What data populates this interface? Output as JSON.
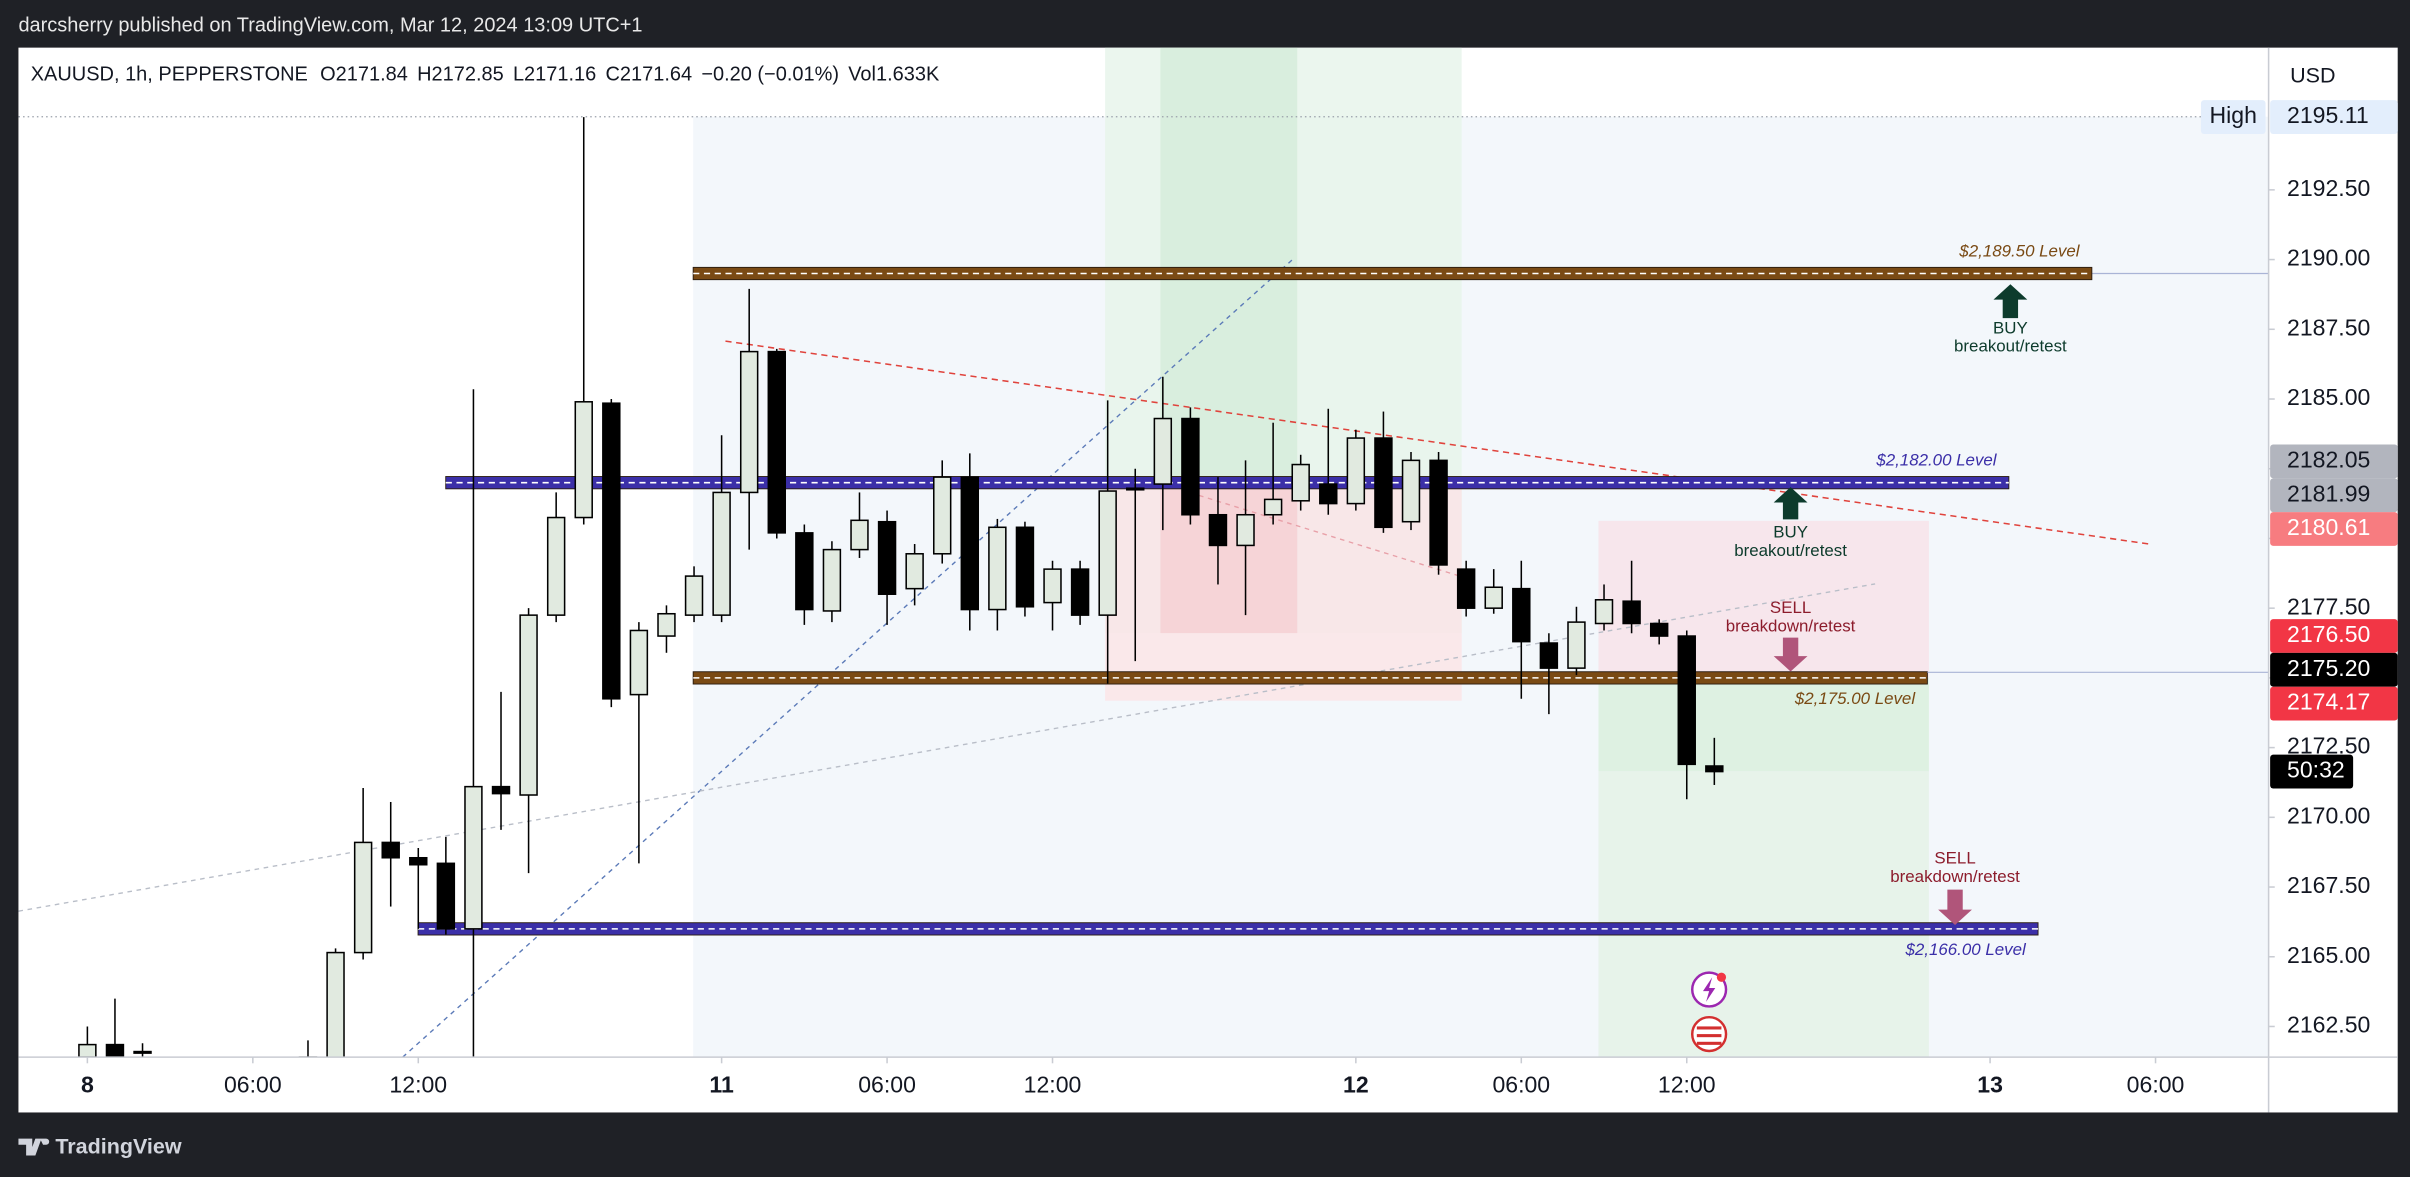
{
  "header": {
    "publisher": "darcsherry published on TradingView.com, Mar 12, 2024 13:09 UTC+1"
  },
  "footer": {
    "brand": "TradingView"
  },
  "chart_data": {
    "type": "candlestick",
    "symbol": "XAUUSD, 1h, PEPPERSTONE",
    "legend_items": [
      "O2171.84",
      "H2172.85",
      "L2171.16",
      "C2171.64",
      "−0.20 (−0.01%)",
      "Vol1.633K"
    ],
    "currency": "USD",
    "countdown": "50:32",
    "up_color": "#e1eae0",
    "down_color": "#000000",
    "x": [
      0,
      1,
      2,
      8,
      9,
      10,
      11,
      12,
      13,
      14,
      15,
      16,
      17,
      18,
      19,
      20,
      21,
      22,
      23,
      24,
      25,
      26,
      27,
      28,
      29,
      30,
      31,
      32,
      33,
      34,
      35,
      36,
      37,
      38,
      39,
      40,
      41,
      42,
      43,
      44,
      45,
      46,
      47,
      48,
      49,
      50,
      51,
      52,
      53,
      54,
      55,
      56,
      57,
      58,
      59
    ],
    "open": [
      2161.4,
      2161.85,
      2161.6,
      2161.3,
      2161.2,
      2165.15,
      2169.1,
      2168.55,
      2168.35,
      2166.0,
      2171.1,
      2170.8,
      2177.25,
      2180.75,
      2184.85,
      2174.4,
      2176.5,
      2177.25,
      2177.25,
      2181.65,
      2186.7,
      2180.2,
      2177.4,
      2179.6,
      2180.6,
      2178.2,
      2179.45,
      2182.2,
      2177.45,
      2180.4,
      2177.7,
      2178.9,
      2177.25,
      2181.75,
      2181.95,
      2184.3,
      2180.85,
      2179.75,
      2180.85,
      2181.35,
      2181.95,
      2181.25,
      2183.6,
      2180.6,
      2182.8,
      2178.9,
      2177.5,
      2178.2,
      2176.25,
      2175.35,
      2176.95,
      2177.75,
      2176.95,
      2176.5,
      2171.84
    ],
    "high": [
      2162.5,
      2163.5,
      2161.9,
      2162.0,
      2165.3,
      2171.05,
      2170.55,
      2168.9,
      2169.3,
      2185.35,
      2174.5,
      2177.5,
      2181.65,
      2195.11,
      2185.0,
      2177.0,
      2177.6,
      2179.0,
      2183.7,
      2188.95,
      2186.8,
      2180.5,
      2179.9,
      2181.65,
      2181.0,
      2179.8,
      2182.8,
      2183.05,
      2180.7,
      2180.6,
      2179.2,
      2179.2,
      2184.95,
      2182.5,
      2185.8,
      2184.7,
      2182.2,
      2182.8,
      2184.15,
      2183.0,
      2184.65,
      2183.9,
      2184.55,
      2183.1,
      2183.1,
      2179.2,
      2178.9,
      2179.2,
      2176.6,
      2177.55,
      2178.35,
      2179.2,
      2177.1,
      2176.7,
      2172.85
    ],
    "low": [
      2161.2,
      2161.1,
      2161.2,
      2161.0,
      2161.0,
      2164.9,
      2166.8,
      2166.0,
      2165.8,
      2161.1,
      2169.55,
      2168.0,
      2177.0,
      2180.5,
      2173.95,
      2168.35,
      2175.9,
      2177.0,
      2177.0,
      2179.6,
      2180.0,
      2176.9,
      2177.0,
      2179.3,
      2176.9,
      2177.6,
      2179.1,
      2176.7,
      2176.7,
      2177.2,
      2176.7,
      2176.9,
      2174.8,
      2175.6,
      2180.3,
      2180.5,
      2178.35,
      2177.25,
      2180.5,
      2181.0,
      2180.85,
      2181.0,
      2180.2,
      2180.3,
      2178.7,
      2177.2,
      2177.3,
      2174.25,
      2173.7,
      2175.1,
      2176.7,
      2176.6,
      2176.2,
      2170.65,
      2171.16
    ],
    "close": [
      2161.85,
      2161.3,
      2161.55,
      2161.4,
      2165.15,
      2169.1,
      2168.55,
      2168.3,
      2166.0,
      2171.1,
      2170.85,
      2177.25,
      2180.75,
      2184.9,
      2174.25,
      2176.7,
      2177.3,
      2178.65,
      2181.65,
      2186.7,
      2180.2,
      2177.45,
      2179.6,
      2180.65,
      2178.0,
      2179.45,
      2182.2,
      2177.45,
      2180.4,
      2177.55,
      2178.9,
      2177.25,
      2181.7,
      2181.8,
      2184.3,
      2180.85,
      2179.75,
      2180.85,
      2181.4,
      2182.65,
      2181.25,
      2183.6,
      2180.4,
      2182.8,
      2179.05,
      2177.5,
      2178.25,
      2176.3,
      2175.35,
      2177.0,
      2177.8,
      2176.95,
      2176.5,
      2171.9,
      2171.64
    ],
    "xlim": [
      -2.5,
      79.1
    ],
    "xticks": [
      {
        "value": 0,
        "label": "8"
      },
      {
        "value": 6,
        "label": "06:00"
      },
      {
        "value": 12,
        "label": "12:00"
      },
      {
        "value": 23,
        "label": "11"
      },
      {
        "value": 29,
        "label": "06:00"
      },
      {
        "value": 35,
        "label": "12:00"
      },
      {
        "value": 46,
        "label": "12"
      },
      {
        "value": 52,
        "label": "06:00"
      },
      {
        "value": 58,
        "label": "12:00"
      },
      {
        "value": 69,
        "label": "13"
      },
      {
        "value": 75,
        "label": "06:00"
      }
    ],
    "ylim": [
      2161.4,
      2197.6
    ],
    "yticks": [
      {
        "value": 2162.5,
        "label": "2162.50"
      },
      {
        "value": 2165,
        "label": "2165.00"
      },
      {
        "value": 2167.5,
        "label": "2167.50"
      },
      {
        "value": 2170,
        "label": "2170.00"
      },
      {
        "value": 2172.5,
        "label": "2172.50"
      },
      {
        "value": 2175,
        "label": "2175.00"
      },
      {
        "value": 2177.5,
        "label": "2177.50"
      },
      {
        "value": 2180,
        "label": "2180.00"
      },
      {
        "value": 2182.5,
        "label": "2182.50"
      },
      {
        "value": 2185,
        "label": "2185.00"
      },
      {
        "value": 2187.5,
        "label": "2187.50"
      },
      {
        "value": 2190,
        "label": "2190.00"
      },
      {
        "value": 2192.5,
        "label": "2192.50"
      }
    ],
    "levels": [
      {
        "value": 2189.5,
        "label": "$2,189.50 Level",
        "color": "#7a4a14"
      },
      {
        "value": 2182,
        "label": "$2,182.00 Level",
        "color": "#3b2fa8"
      },
      {
        "value": 2175,
        "label": "$2,175.00 Level",
        "color": "#7a4a14"
      },
      {
        "value": 2166,
        "label": "$2,166.00 Level",
        "color": "#3b2fa8"
      }
    ],
    "annotations": [
      {
        "lines": [
          "BUY",
          "breakout/retest"
        ],
        "color": "#0d3b2c"
      },
      {
        "lines": [
          "BUY",
          "breakout/retest"
        ],
        "color": "#0d3b2c"
      },
      {
        "lines": [
          "SELL",
          "breakdown/retest"
        ],
        "color": "#8c1c2c"
      },
      {
        "lines": [
          "SELL",
          "breakdown/retest"
        ],
        "color": "#8c1c2c"
      }
    ],
    "price_tags": [
      {
        "value": 2195.11,
        "label": "2195.11",
        "note": "High",
        "color": "#e3eefc"
      },
      {
        "value": 2182.05,
        "label": "2182.05",
        "color": "#b2b5be"
      },
      {
        "value": 2181.99,
        "label": "2181.99",
        "color": "#b2b5be"
      },
      {
        "value": 2180.61,
        "label": "2180.61",
        "color": "#f77c80"
      },
      {
        "value": 2176.5,
        "label": "2176.50",
        "color": "#f23645"
      },
      {
        "value": 2175.2,
        "label": "2175.20",
        "color": "#000000"
      },
      {
        "value": 2174.17,
        "label": "2174.17",
        "color": "#f23645"
      }
    ]
  }
}
